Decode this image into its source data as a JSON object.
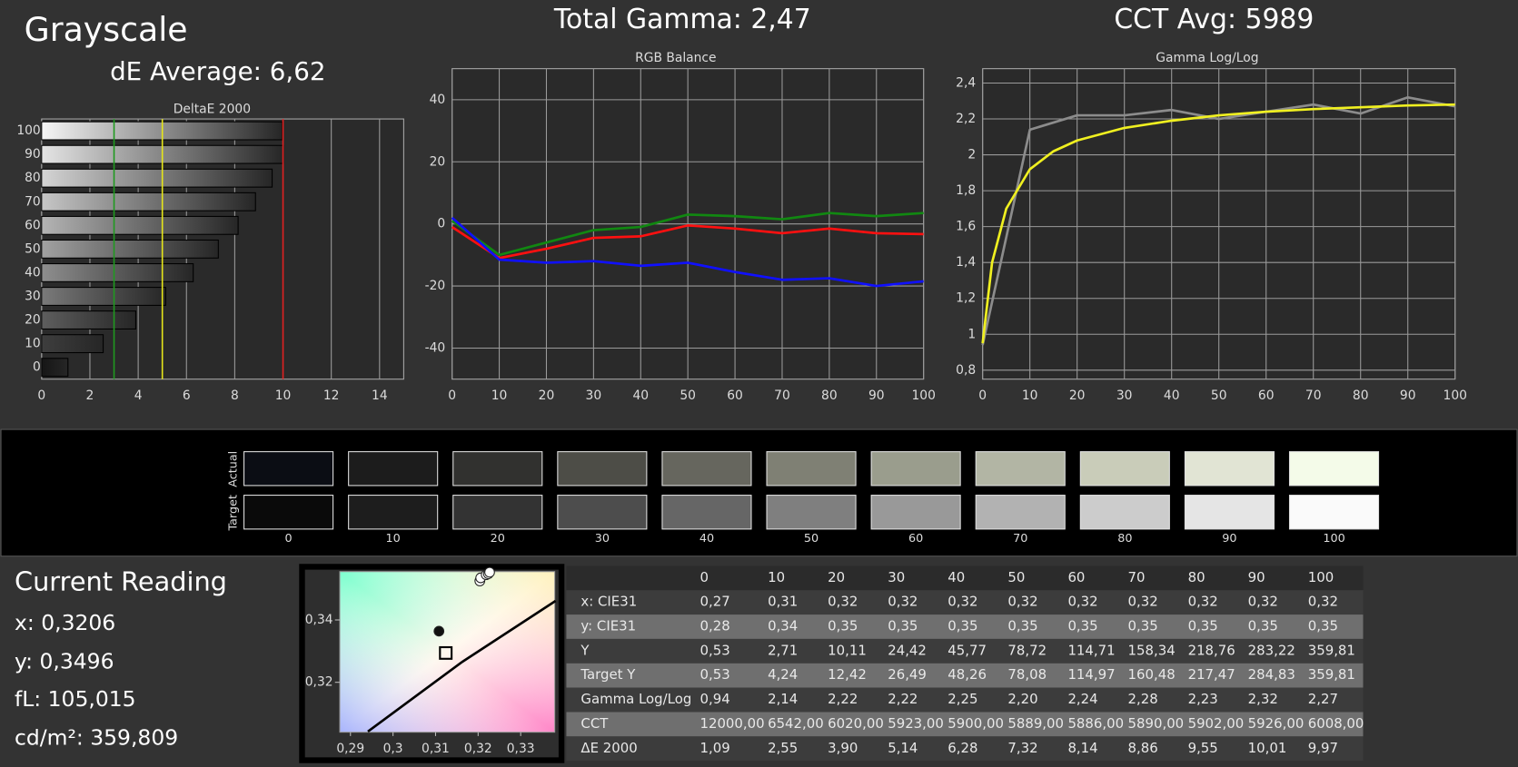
{
  "header": {
    "title": "Grayscale",
    "de_average": "dE Average: 6,62",
    "total_gamma": "Total Gamma: 2,47",
    "cct_avg": "CCT Avg: 5989"
  },
  "chart_data": [
    {
      "type": "bar",
      "orientation": "horizontal",
      "title": "DeltaE 2000",
      "categories": [
        "100",
        "90",
        "80",
        "70",
        "60",
        "50",
        "40",
        "30",
        "20",
        "10",
        "0"
      ],
      "values": [
        9.97,
        10.01,
        9.55,
        8.86,
        8.14,
        7.32,
        6.28,
        5.14,
        3.9,
        2.55,
        1.09
      ],
      "bar_colors": [
        "#f6f6f6",
        "#e4e4e4",
        "#d4d4d4",
        "#c6c6c6",
        "#b4b4b4",
        "#a2a2a2",
        "#8e8e8e",
        "#7a7a7a",
        "#5e5e5e",
        "#3e3e3e",
        "#161616"
      ],
      "xlim": [
        0,
        15
      ],
      "xticks": [
        0,
        2,
        4,
        6,
        8,
        10,
        12,
        14
      ],
      "grid": true,
      "reference_lines": [
        {
          "value": 3,
          "color": "#1f9a1f"
        },
        {
          "value": 5,
          "color": "#e6e61a"
        },
        {
          "value": 10,
          "color": "#e02020"
        }
      ]
    },
    {
      "type": "line",
      "title": "RGB Balance",
      "x": [
        0,
        10,
        20,
        30,
        40,
        50,
        60,
        70,
        80,
        90,
        100
      ],
      "series": [
        {
          "color": "#ff1010",
          "values": [
            -1,
            -11,
            -8,
            -4.5,
            -4,
            -0.5,
            -1.5,
            -3,
            -1.5,
            -3,
            -3.3
          ]
        },
        {
          "color": "#118811",
          "values": [
            1,
            -10,
            -6,
            -2,
            -1,
            3,
            2.5,
            1.5,
            3.5,
            2.5,
            3.5
          ]
        },
        {
          "color": "#1010ff",
          "values": [
            2,
            -11.5,
            -12.5,
            -12,
            -13.5,
            -12.5,
            -15.5,
            -18,
            -17.5,
            -20,
            -18.5
          ]
        }
      ],
      "xlim": [
        0,
        100
      ],
      "xticks": [
        0,
        10,
        20,
        30,
        40,
        50,
        60,
        70,
        80,
        90,
        100
      ],
      "ylim": [
        -50,
        50
      ],
      "yticks": [
        -40,
        -20,
        0,
        20,
        40
      ],
      "grid": true
    },
    {
      "type": "line",
      "title": "Gamma Log/Log",
      "series": [
        {
          "color": "#8c8c8c",
          "x": [
            0,
            10,
            20,
            30,
            40,
            50,
            60,
            70,
            80,
            90,
            100
          ],
          "values": [
            0.94,
            2.14,
            2.22,
            2.22,
            2.25,
            2.2,
            2.24,
            2.28,
            2.23,
            2.32,
            2.27
          ]
        },
        {
          "color": "#f0f020",
          "x": [
            0,
            2,
            5,
            10,
            15,
            20,
            30,
            40,
            50,
            60,
            70,
            80,
            90,
            100
          ],
          "values": [
            0.95,
            1.4,
            1.7,
            1.92,
            2.02,
            2.08,
            2.15,
            2.19,
            2.22,
            2.24,
            2.255,
            2.265,
            2.275,
            2.28
          ]
        }
      ],
      "xlim": [
        0,
        100
      ],
      "xticks": [
        0,
        10,
        20,
        30,
        40,
        50,
        60,
        70,
        80,
        90,
        100
      ],
      "ylim": [
        0.75,
        2.48
      ],
      "yticks": [
        {
          "value": 0.8,
          "label": "0,8"
        },
        1,
        {
          "value": 1.2,
          "label": "1,2"
        },
        {
          "value": 1.4,
          "label": "1,4"
        },
        {
          "value": 1.6,
          "label": "1,6"
        },
        {
          "value": 1.8,
          "label": "1,8"
        },
        2,
        {
          "value": 2.2,
          "label": "2,2"
        },
        {
          "value": 2.4,
          "label": "2,4"
        }
      ],
      "grid": true
    },
    {
      "type": "scatter",
      "series": [
        {
          "style": "line",
          "color": "#000000",
          "x": [
            0.2941,
            0.316,
            0.3382
          ],
          "values": [
            0.3042,
            0.3263,
            0.3461
          ]
        },
        {
          "marker": "circle",
          "color": "#ffffff",
          "x": [
            0.3204,
            0.3206,
            0.3219,
            0.3224,
            0.3227
          ],
          "values": [
            0.3525,
            0.3535,
            0.3545,
            0.3548,
            0.3553
          ]
        },
        {
          "marker": "circle",
          "color": "#111111",
          "x": [
            0.3108
          ],
          "values": [
            0.3364
          ]
        },
        {
          "marker": "square",
          "color": "#000000",
          "x": [
            0.3124
          ],
          "values": [
            0.3294
          ]
        }
      ],
      "xlim": [
        0.2875,
        0.338
      ],
      "xticks": [
        {
          "value": 0.29,
          "label": "0,29"
        },
        {
          "value": 0.3,
          "label": "0,3"
        },
        {
          "value": 0.31,
          "label": "0,31"
        },
        {
          "value": 0.32,
          "label": "0,32"
        },
        {
          "value": 0.33,
          "label": "0,33"
        }
      ],
      "ylim": [
        0.304,
        0.3555
      ],
      "yticks": [
        {
          "value": 0.32,
          "label": "0,32"
        },
        {
          "value": 0.34,
          "label": "0,34"
        }
      ]
    }
  ],
  "swatches": {
    "row_labels": [
      "Actual",
      "Target"
    ],
    "labels": [
      "0",
      "10",
      "20",
      "30",
      "40",
      "50",
      "60",
      "70",
      "80",
      "90",
      "100"
    ],
    "actual": [
      "#0b0d14",
      "#1c1c1c",
      "#31312f",
      "#4d4d47",
      "#66665e",
      "#7f8074",
      "#9a9d8d",
      "#b2b5a4",
      "#c9ccb9",
      "#e1e4d4",
      "#f4fbe9"
    ],
    "target": [
      "#0a0a0a",
      "#1d1d1d",
      "#333333",
      "#4d4d4d",
      "#666666",
      "#7f7f7f",
      "#999999",
      "#b2b2b2",
      "#cccccc",
      "#e5e5e5",
      "#fafafa"
    ]
  },
  "current_reading": {
    "title": "Current Reading",
    "lines": [
      "x: 0,3206",
      "y: 0,3496",
      "fL: 105,015",
      "cd/m²: 359,809"
    ]
  },
  "table": {
    "columns": [
      "0",
      "10",
      "20",
      "30",
      "40",
      "50",
      "60",
      "70",
      "80",
      "90",
      "100"
    ],
    "rows": [
      {
        "label": "x: CIE31",
        "cells": [
          "0,27",
          "0,31",
          "0,32",
          "0,32",
          "0,32",
          "0,32",
          "0,32",
          "0,32",
          "0,32",
          "0,32",
          "0,32"
        ]
      },
      {
        "label": "y: CIE31",
        "cells": [
          "0,28",
          "0,34",
          "0,35",
          "0,35",
          "0,35",
          "0,35",
          "0,35",
          "0,35",
          "0,35",
          "0,35",
          "0,35"
        ]
      },
      {
        "label": "Y",
        "cells": [
          "0,53",
          "2,71",
          "10,11",
          "24,42",
          "45,77",
          "78,72",
          "114,71",
          "158,34",
          "218,76",
          "283,22",
          "359,81"
        ]
      },
      {
        "label": "Target Y",
        "cells": [
          "0,53",
          "4,24",
          "12,42",
          "26,49",
          "48,26",
          "78,08",
          "114,97",
          "160,48",
          "217,47",
          "284,83",
          "359,81"
        ]
      },
      {
        "label": "Gamma Log/Log",
        "cells": [
          "0,94",
          "2,14",
          "2,22",
          "2,22",
          "2,25",
          "2,20",
          "2,24",
          "2,28",
          "2,23",
          "2,32",
          "2,27"
        ]
      },
      {
        "label": "CCT",
        "cells": [
          "12000,00",
          "6542,00",
          "6020,00",
          "5923,00",
          "5900,00",
          "5889,00",
          "5886,00",
          "5890,00",
          "5902,00",
          "5926,00",
          "6008,00"
        ]
      },
      {
        "label": "ΔE 2000",
        "cells": [
          "1,09",
          "2,55",
          "3,90",
          "5,14",
          "6,28",
          "7,32",
          "8,14",
          "8,86",
          "9,55",
          "10,01",
          "9,97"
        ]
      }
    ]
  }
}
